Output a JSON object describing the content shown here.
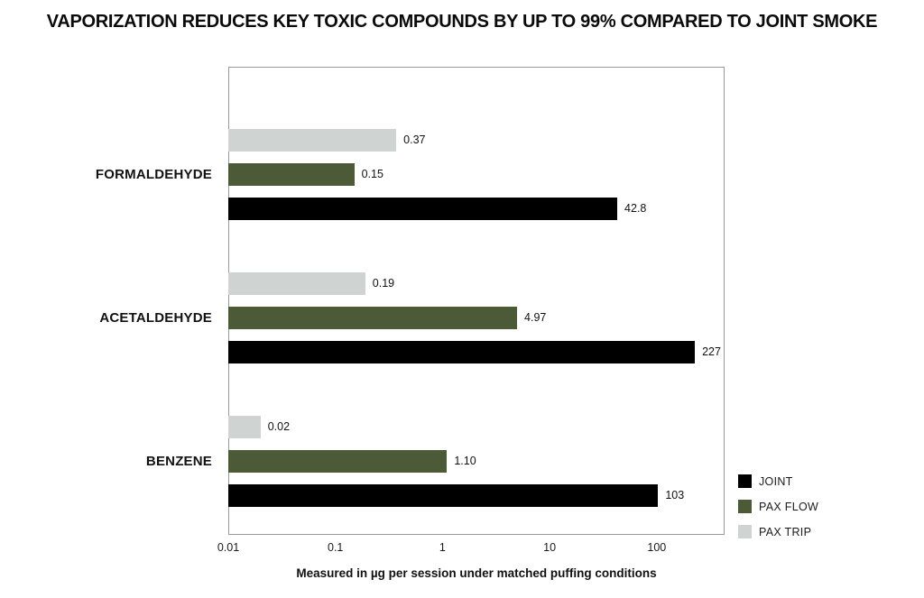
{
  "title": "VAPORIZATION REDUCES KEY TOXIC COMPOUNDS BY UP TO 99% COMPARED TO JOINT SMOKE",
  "chart_data": {
    "type": "bar",
    "orientation": "horizontal",
    "x_scale": "log",
    "x_min": 0.01,
    "x_max": 430,
    "x_ticks": [
      {
        "value": 0.01,
        "label": "0.01"
      },
      {
        "value": 0.1,
        "label": "0.1"
      },
      {
        "value": 1,
        "label": "1"
      },
      {
        "value": 10,
        "label": "10"
      },
      {
        "value": 100,
        "label": "100"
      }
    ],
    "xlabel": "Measured in µg per session under matched puffing conditions",
    "categories": [
      "FORMALDEHYDE",
      "ACETALDEHYDE",
      "BENZENE"
    ],
    "series": [
      {
        "name": "JOINT",
        "color": "#000000",
        "values": [
          42.8,
          227,
          103
        ],
        "labels": [
          "42.8",
          "227",
          "103"
        ]
      },
      {
        "name": "PAX FLOW",
        "color": "#4d5a37",
        "values": [
          0.15,
          4.97,
          1.1
        ],
        "labels": [
          "0.15",
          "4.97",
          "1.10"
        ]
      },
      {
        "name": "PAX TRIP",
        "color": "#cfd3d1",
        "values": [
          0.37,
          0.19,
          0.02
        ],
        "labels": [
          "0.37",
          "0.19",
          "0.02"
        ]
      }
    ],
    "bar_order_top_to_bottom": [
      "PAX TRIP",
      "PAX FLOW",
      "JOINT"
    ],
    "legend": [
      "JOINT",
      "PAX FLOW",
      "PAX TRIP"
    ],
    "legend_position": "bottom-right",
    "grid": false
  },
  "colors": {
    "background": "#ffffff",
    "plot_border": "#9a9a9a",
    "text": "#111111"
  }
}
